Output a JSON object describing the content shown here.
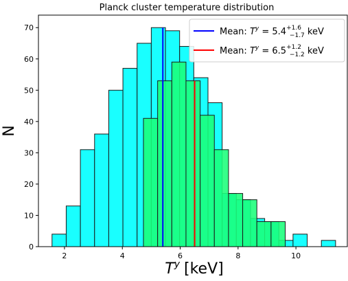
{
  "chart_data": {
    "type": "bar",
    "title": "Planck cluster temperature distribution",
    "xlabel_base": "T",
    "xlabel_sup": "y",
    "xlabel_unit": "[keV]",
    "ylabel": "N",
    "xlim": [
      1.1,
      11.8
    ],
    "ylim": [
      0,
      74
    ],
    "xticks": [
      2,
      4,
      6,
      8,
      10
    ],
    "yticks": [
      0,
      10,
      20,
      30,
      40,
      50,
      60,
      70
    ],
    "grid": false,
    "legend_position": "top-right",
    "series": [
      {
        "name": "Mean: T^y = 5.4 (+1.6, -1.7) keV",
        "legend": {
          "prefix": "Mean: ",
          "var": "T",
          "sup": "y",
          "eq": " = ",
          "value": "5.4",
          "plus": "+1.6",
          "minus": "−1.7",
          "unit": " keV"
        },
        "color": "#00ffff",
        "mean": 5.4,
        "mean_color": "#0000ff",
        "bins": [
          {
            "x0": 1.57,
            "x1": 2.06,
            "count": 4
          },
          {
            "x0": 2.06,
            "x1": 2.55,
            "count": 13
          },
          {
            "x0": 2.55,
            "x1": 3.04,
            "count": 31
          },
          {
            "x0": 3.04,
            "x1": 3.53,
            "count": 36
          },
          {
            "x0": 3.53,
            "x1": 4.02,
            "count": 50
          },
          {
            "x0": 4.02,
            "x1": 4.51,
            "count": 57
          },
          {
            "x0": 4.51,
            "x1": 5.0,
            "count": 65
          },
          {
            "x0": 5.0,
            "x1": 5.49,
            "count": 70
          },
          {
            "x0": 5.49,
            "x1": 5.98,
            "count": 69
          },
          {
            "x0": 5.98,
            "x1": 6.47,
            "count": 64
          },
          {
            "x0": 6.47,
            "x1": 6.96,
            "count": 54
          },
          {
            "x0": 6.96,
            "x1": 7.45,
            "count": 46
          },
          {
            "x0": 7.45,
            "x1": 7.94,
            "count": 17
          },
          {
            "x0": 7.94,
            "x1": 8.43,
            "count": 15
          },
          {
            "x0": 8.43,
            "x1": 8.92,
            "count": 9
          },
          {
            "x0": 8.92,
            "x1": 9.41,
            "count": 8
          },
          {
            "x0": 9.41,
            "x1": 9.9,
            "count": 2
          },
          {
            "x0": 9.9,
            "x1": 10.39,
            "count": 4
          },
          {
            "x0": 10.39,
            "x1": 10.88,
            "count": 0
          },
          {
            "x0": 10.88,
            "x1": 11.37,
            "count": 2
          }
        ]
      },
      {
        "name": "Mean: T^y = 6.5 (+1.2, -1.2) keV",
        "legend": {
          "prefix": "Mean: ",
          "var": "T",
          "sup": "y",
          "eq": " = ",
          "value": "6.5",
          "plus": "+1.2",
          "minus": "−1.2",
          "unit": " keV"
        },
        "color": "#1aff7a",
        "mean": 6.5,
        "mean_color": "#ff0000",
        "bins": [
          {
            "x0": 4.73,
            "x1": 5.22,
            "count": 41
          },
          {
            "x0": 5.22,
            "x1": 5.71,
            "count": 53
          },
          {
            "x0": 5.71,
            "x1": 6.2,
            "count": 59
          },
          {
            "x0": 6.2,
            "x1": 6.69,
            "count": 53
          },
          {
            "x0": 6.69,
            "x1": 7.18,
            "count": 42
          },
          {
            "x0": 7.18,
            "x1": 7.67,
            "count": 31
          },
          {
            "x0": 7.67,
            "x1": 8.16,
            "count": 17
          },
          {
            "x0": 8.16,
            "x1": 8.65,
            "count": 15
          },
          {
            "x0": 8.65,
            "x1": 9.14,
            "count": 8
          },
          {
            "x0": 9.14,
            "x1": 9.63,
            "count": 8
          }
        ]
      }
    ]
  }
}
